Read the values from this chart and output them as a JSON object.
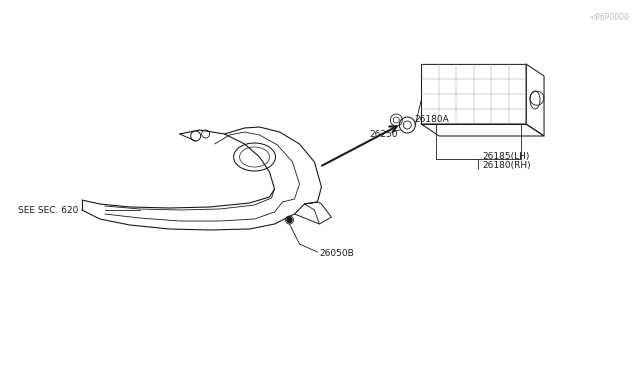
{
  "bg_color": "#ffffff",
  "line_color": "#1a1a1a",
  "labels": {
    "see_sec": "SEE SEC. 620",
    "part_26050B": "26050B",
    "part_26180RH": "26180(RH)",
    "part_26185LH": "26185(LH)",
    "part_26250": "26250",
    "part_26180A": "26180A"
  },
  "watermark_text": "<P6P0000"
}
